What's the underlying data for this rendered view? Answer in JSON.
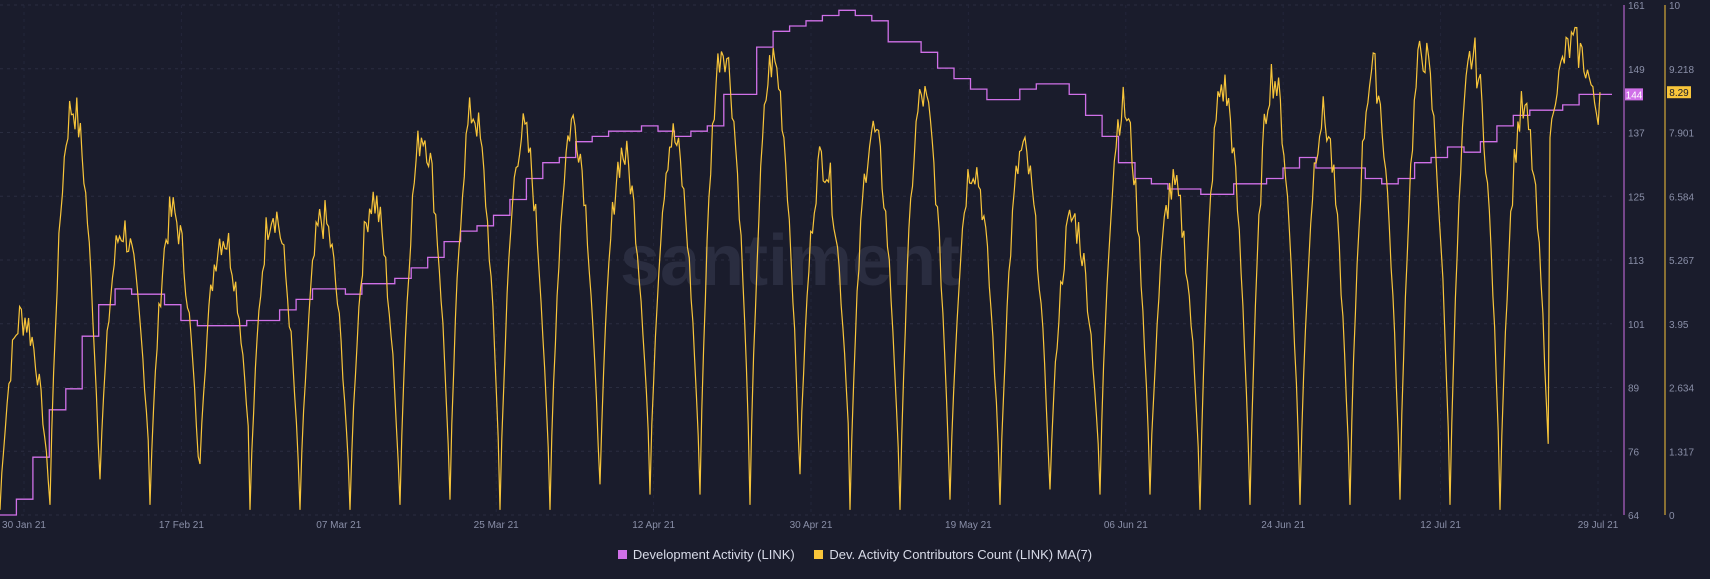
{
  "chart_data": {
    "type": "line",
    "watermark": "santiment",
    "x_ticks": [
      "30 Jan 21",
      "17 Feb 21",
      "07 Mar 21",
      "25 Mar 21",
      "12 Apr 21",
      "30 Apr 21",
      "19 May 21",
      "06 Jun 21",
      "24 Jun 21",
      "12 Jul 21",
      "29 Jul 21"
    ],
    "y_left": {
      "ticks": [
        "161",
        "149",
        "137",
        "125",
        "113",
        "101",
        "89",
        "76",
        "64"
      ],
      "min": 64,
      "max": 161,
      "color": "#d070e8"
    },
    "y_right": {
      "ticks": [
        "10",
        "9.218",
        "7.901",
        "6.584",
        "5.267",
        "3.95",
        "2.634",
        "1.317",
        "0"
      ],
      "min": 0,
      "max": 10,
      "color": "#f8c53a"
    },
    "series": [
      {
        "name": "Development Activity (LINK)",
        "color": "#d070e8",
        "axis": "left",
        "last_value": "144",
        "values": [
          64,
          67,
          75,
          84,
          88,
          98,
          104,
          107,
          106,
          106,
          104,
          101,
          100,
          100,
          100,
          101,
          101,
          103,
          105,
          107,
          107,
          106,
          108,
          108,
          109,
          111,
          113,
          116,
          118,
          119,
          121,
          124,
          128,
          131,
          132,
          135,
          136,
          137,
          137,
          138,
          137,
          136,
          137,
          138,
          144,
          144,
          153,
          156,
          157,
          158,
          159,
          160,
          159,
          158,
          154,
          154,
          152,
          149,
          147,
          145,
          143,
          143,
          145,
          146,
          146,
          144,
          140,
          136,
          131,
          128,
          127,
          126,
          126,
          125,
          125,
          127,
          127,
          128,
          130,
          132,
          130,
          130,
          130,
          128,
          127,
          128,
          131,
          132,
          134,
          133,
          135,
          138,
          140,
          141,
          141,
          142,
          144,
          144
        ]
      },
      {
        "name": "Dev. Activity Contributors Count (LINK) MA(7)",
        "color": "#f8c53a",
        "axis": "right",
        "last_value": "8.29",
        "peaks": [
          3.9,
          8.0,
          5.6,
          5.9,
          5.5,
          6.0,
          5.8,
          6.2,
          7.5,
          7.9,
          7.5,
          7.7,
          7.1,
          7.4,
          9.2,
          8.9,
          7.0,
          7.5,
          8.2,
          6.9,
          7.1,
          5.8,
          8.0,
          6.4,
          8.4,
          8.6,
          7.8,
          8.7,
          9.1,
          9.0,
          7.9,
          9.2
        ],
        "troughs": [
          0.1,
          0.2,
          0.7,
          0.2,
          1.0,
          0.1,
          0.1,
          0.1,
          0.2,
          0.3,
          0.1,
          0.1,
          0.6,
          0.4,
          0.4,
          0.2,
          0.8,
          0.1,
          0.1,
          0.3,
          0.2,
          0.5,
          0.4,
          0.4,
          0.1,
          0.2,
          0.2,
          0.2,
          0.3,
          0.2,
          0.1,
          7.4
        ]
      }
    ],
    "legend_position": "bottom-center",
    "grid": true
  }
}
